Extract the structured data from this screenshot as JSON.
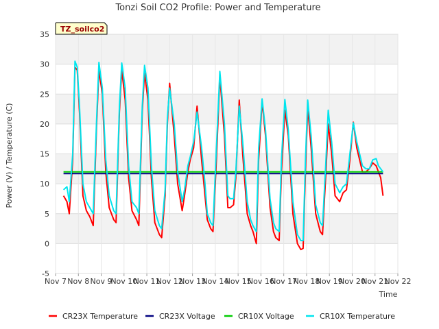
{
  "chart_data": {
    "type": "line",
    "title": "Tonzi Soil CO2 Profile: Power and Temperature",
    "site_label": "TZ_soilco2",
    "xlabel": "Time",
    "ylabel": "Power (V) / Temperature (C)",
    "ylim": [
      -5,
      35
    ],
    "yticks": [
      "-5",
      "0",
      "5",
      "10",
      "15",
      "20",
      "25",
      "30",
      "35"
    ],
    "xlim": [
      7,
      22
    ],
    "xticks": [
      {
        "x": 7,
        "label": "Nov 7"
      },
      {
        "x": 8,
        "label": "Nov 8"
      },
      {
        "x": 9,
        "label": "Nov 9"
      },
      {
        "x": 10,
        "label": "Nov 10"
      },
      {
        "x": 11,
        "label": "Nov 11"
      },
      {
        "x": 12,
        "label": "Nov 12"
      },
      {
        "x": 13,
        "label": "Nov 13"
      },
      {
        "x": 14,
        "label": "Nov 14"
      },
      {
        "x": 15,
        "label": "Nov 15"
      },
      {
        "x": 16,
        "label": "Nov 16"
      },
      {
        "x": 17,
        "label": "Nov 17"
      },
      {
        "x": 18,
        "label": "Nov 18"
      },
      {
        "x": 19,
        "label": "Nov 19"
      },
      {
        "x": 20,
        "label": "Nov 20"
      },
      {
        "x": 21,
        "label": "Nov 21"
      },
      {
        "x": 22,
        "label": "Nov 22"
      }
    ],
    "legend_position": "bottom",
    "grid": true,
    "series": [
      {
        "name": "CR23X Temperature",
        "color": "#ff0000",
        "x": [
          7.35,
          7.5,
          7.6,
          7.75,
          7.85,
          7.95,
          8.05,
          8.2,
          8.35,
          8.5,
          8.65,
          8.8,
          8.9,
          9.05,
          9.2,
          9.35,
          9.55,
          9.65,
          9.8,
          9.9,
          10.05,
          10.2,
          10.35,
          10.55,
          10.65,
          10.8,
          10.9,
          11.05,
          11.2,
          11.35,
          11.55,
          11.65,
          11.8,
          11.9,
          12.0,
          12.2,
          12.35,
          12.55,
          12.65,
          12.8,
          12.9,
          13.05,
          13.2,
          13.4,
          13.55,
          13.65,
          13.8,
          13.9,
          14.05,
          14.2,
          14.4,
          14.55,
          14.65,
          14.8,
          14.9,
          15.05,
          15.2,
          15.4,
          15.55,
          15.65,
          15.8,
          15.9,
          16.05,
          16.2,
          16.4,
          16.55,
          16.65,
          16.8,
          16.9,
          17.05,
          17.2,
          17.4,
          17.6,
          17.75,
          17.85,
          17.95,
          18.05,
          18.2,
          18.4,
          18.6,
          18.7,
          18.85,
          18.95,
          19.1,
          19.25,
          19.45,
          19.6,
          19.75,
          19.9,
          20.05,
          20.2,
          20.45,
          20.6,
          20.75,
          20.9,
          21.05,
          21.15,
          21.25,
          21.35
        ],
        "y": [
          8,
          7,
          5,
          14,
          29.5,
          29,
          22,
          8,
          5.5,
          4.5,
          3,
          20,
          29,
          25,
          12,
          6,
          4,
          3.5,
          22,
          29,
          24,
          11,
          5.5,
          4,
          3,
          22,
          28.5,
          24,
          11,
          3.5,
          1.5,
          1,
          8,
          20,
          26.8,
          18,
          10,
          5.5,
          8,
          12,
          14,
          16,
          23,
          14,
          8,
          4,
          2.5,
          2,
          14,
          28,
          18,
          6,
          6,
          6.5,
          11,
          24,
          15,
          5,
          3,
          2,
          0,
          14,
          23.8,
          18,
          6,
          2,
          1,
          0.5,
          12,
          22.3,
          18,
          5,
          0,
          -1,
          -0.8,
          12,
          22.8,
          16,
          5,
          2,
          1.5,
          12,
          20,
          15,
          8,
          7,
          8.5,
          9,
          14,
          20.3,
          16,
          12,
          12,
          12.5,
          13.5,
          13,
          12,
          11,
          8
        ]
      },
      {
        "name": "CR23X Voltage",
        "color": "#000080",
        "x": [
          7.35,
          21.35
        ],
        "y": [
          11.7,
          11.7
        ]
      },
      {
        "name": "CR10X Voltage",
        "color": "#00cc00",
        "x": [
          7.35,
          21.35
        ],
        "y": [
          12.0,
          12.0
        ]
      },
      {
        "name": "CR10X Temperature",
        "color": "#00e5ee",
        "x": [
          7.35,
          7.5,
          7.6,
          7.75,
          7.85,
          7.95,
          8.05,
          8.2,
          8.35,
          8.5,
          8.65,
          8.8,
          8.9,
          9.05,
          9.2,
          9.35,
          9.55,
          9.65,
          9.8,
          9.9,
          10.05,
          10.2,
          10.35,
          10.55,
          10.65,
          10.8,
          10.9,
          11.05,
          11.2,
          11.35,
          11.55,
          11.65,
          11.8,
          11.9,
          12.0,
          12.2,
          12.35,
          12.55,
          12.65,
          12.8,
          12.9,
          13.05,
          13.2,
          13.4,
          13.55,
          13.65,
          13.8,
          13.9,
          14.05,
          14.2,
          14.4,
          14.55,
          14.65,
          14.8,
          14.9,
          15.05,
          15.2,
          15.4,
          15.55,
          15.65,
          15.8,
          15.9,
          16.05,
          16.2,
          16.4,
          16.55,
          16.65,
          16.8,
          16.9,
          17.05,
          17.2,
          17.4,
          17.6,
          17.75,
          17.85,
          17.95,
          18.05,
          18.2,
          18.4,
          18.6,
          18.7,
          18.85,
          18.95,
          19.1,
          19.25,
          19.45,
          19.6,
          19.75,
          19.9,
          20.05,
          20.2,
          20.45,
          20.6,
          20.75,
          20.9,
          21.05,
          21.15,
          21.25,
          21.35
        ],
        "y": [
          9,
          9.5,
          7,
          15,
          30.5,
          29.5,
          23,
          10,
          7,
          6,
          5,
          21,
          30.3,
          26,
          14,
          8,
          5.5,
          5,
          23,
          30.2,
          26,
          13,
          7,
          6,
          5,
          23,
          29.8,
          26,
          13,
          5.5,
          3,
          2.5,
          9,
          21,
          26,
          20,
          12,
          7,
          9,
          13,
          14.5,
          17,
          22,
          16,
          10,
          5,
          3.5,
          3,
          16,
          28.8,
          20,
          8,
          7.5,
          7.5,
          12,
          23,
          17,
          7,
          4,
          3,
          2,
          16,
          24.2,
          19,
          7.5,
          3.5,
          2.5,
          2,
          14,
          24.1,
          19,
          7,
          1.5,
          0.5,
          0.5,
          14,
          24,
          18,
          6.5,
          3.5,
          3,
          14,
          22.3,
          17,
          10,
          8.5,
          9.5,
          10,
          15,
          20.2,
          17,
          13,
          12.5,
          12.5,
          14,
          14.2,
          13,
          12.5,
          12
        ]
      }
    ]
  }
}
